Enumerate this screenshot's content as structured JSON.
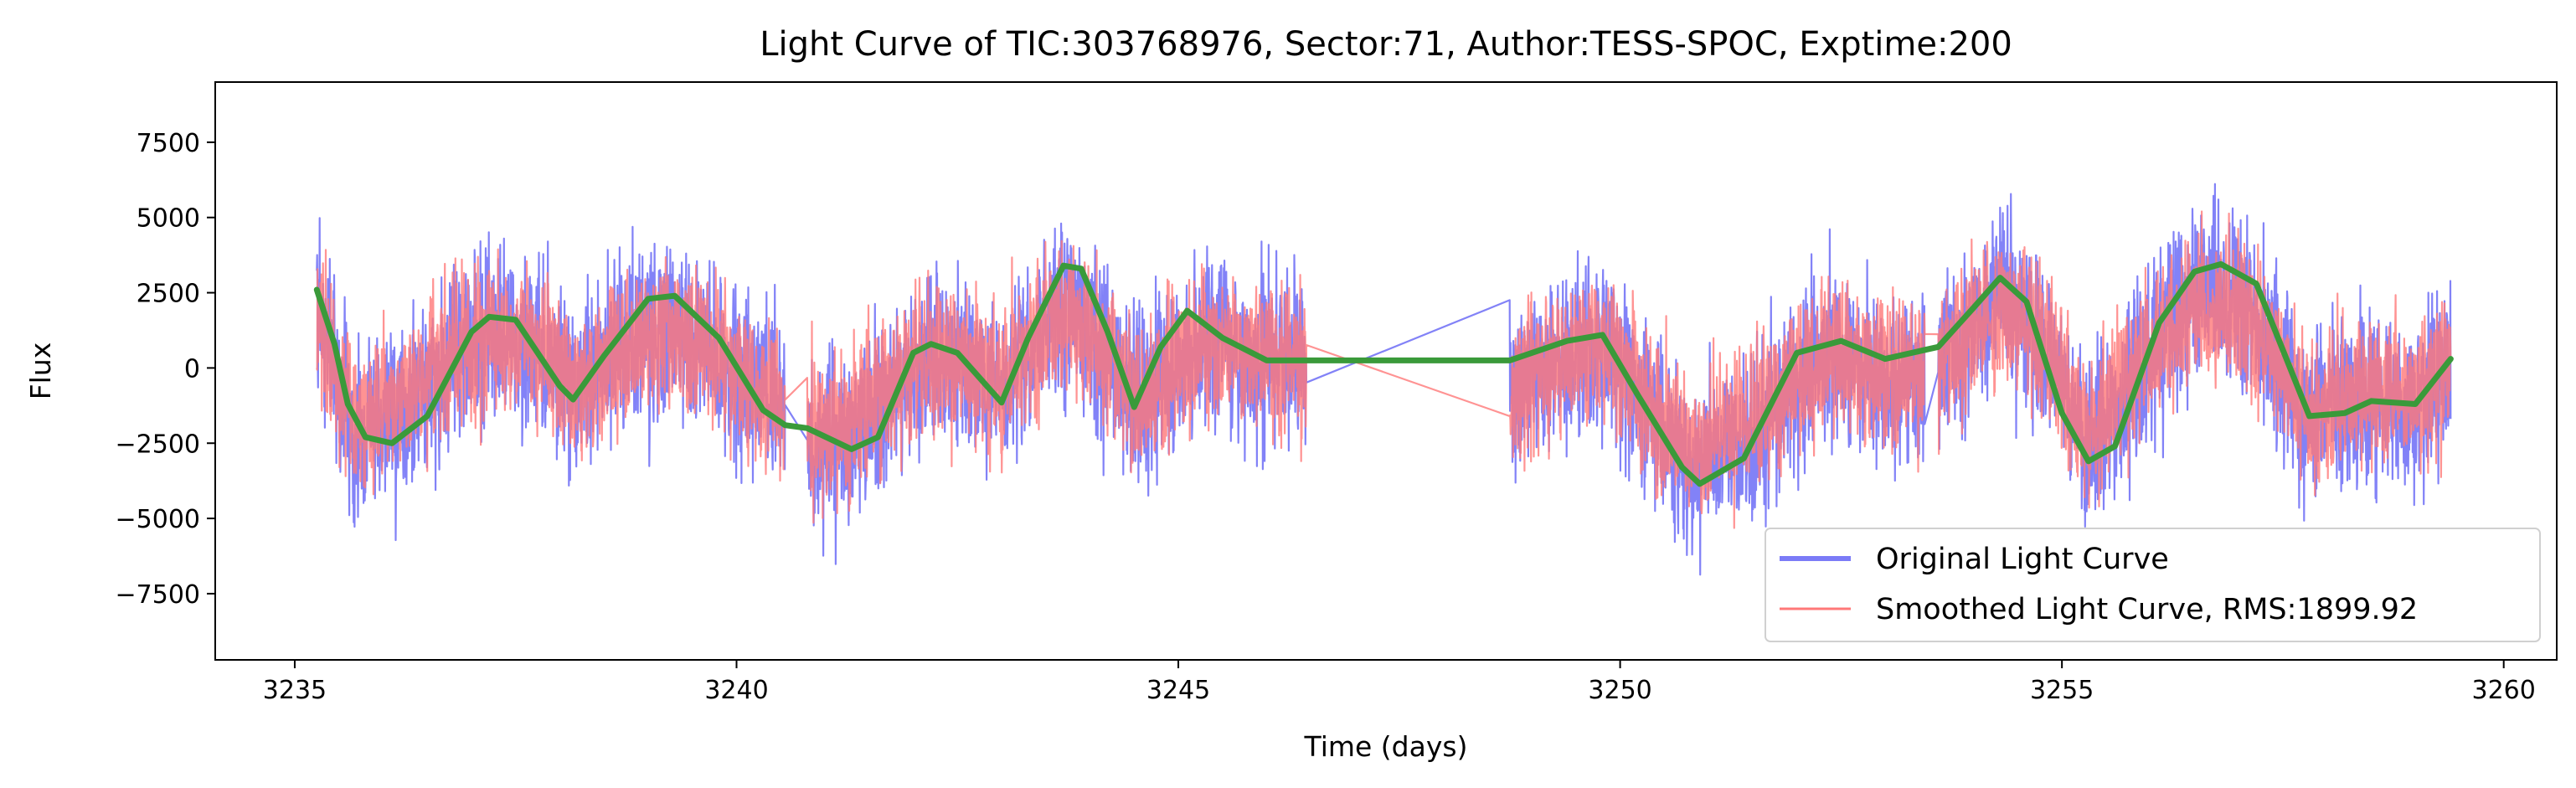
{
  "chart_data": {
    "type": "line",
    "title": "Light Curve of TIC:303768976, Sector:71, Author:TESS-SPOC, Exptime:200",
    "xlabel": "Time (days)",
    "ylabel": "Flux",
    "xlim": [
      3234.1,
      3260.6
    ],
    "ylim": [
      -9700,
      9500
    ],
    "x_ticks": [
      3235,
      3240,
      3245,
      3250,
      3255,
      3260
    ],
    "y_ticks": [
      -7500,
      -5000,
      -2500,
      0,
      2500,
      5000,
      7500
    ],
    "x_tick_labels": [
      "3235",
      "3240",
      "3245",
      "3250",
      "3255",
      "3260"
    ],
    "y_tick_labels": [
      "−7500",
      "−5000",
      "−2500",
      "0",
      "2500",
      "5000",
      "7500"
    ],
    "grid": false,
    "legend_position": "lower-right",
    "segments": [
      [
        3235.25,
        3240.55
      ],
      [
        3240.8,
        3246.45
      ],
      [
        3248.75,
        3253.45
      ],
      [
        3253.6,
        3259.4
      ]
    ],
    "series": [
      {
        "name": "Original Light Curve",
        "color": "#7b7bf7",
        "noise_amplitude": 2800,
        "trend": [
          [
            3235.25,
            2000
          ],
          [
            3235.7,
            -2300
          ],
          [
            3236.2,
            -1500
          ],
          [
            3237.0,
            900
          ],
          [
            3237.6,
            1200
          ],
          [
            3238.2,
            -600
          ],
          [
            3238.9,
            1200
          ],
          [
            3239.5,
            1000
          ],
          [
            3240.2,
            -600
          ],
          [
            3240.55,
            -1600
          ],
          [
            3240.8,
            -2600
          ],
          [
            3241.3,
            -2300
          ],
          [
            3242.0,
            0
          ],
          [
            3242.3,
            400
          ],
          [
            3243.0,
            -500
          ],
          [
            3243.5,
            1500
          ],
          [
            3243.8,
            2200
          ],
          [
            3244.3,
            -400
          ],
          [
            3244.6,
            -1200
          ],
          [
            3245.3,
            900
          ],
          [
            3245.9,
            400
          ],
          [
            3246.45,
            0
          ],
          [
            3248.75,
            -600
          ],
          [
            3249.5,
            500
          ],
          [
            3249.9,
            900
          ],
          [
            3250.3,
            -1500
          ],
          [
            3250.8,
            -3300
          ],
          [
            3251.5,
            -2200
          ],
          [
            3252.3,
            500
          ],
          [
            3253.0,
            -300
          ],
          [
            3253.45,
            -500
          ],
          [
            3253.6,
            0
          ],
          [
            3254.3,
            2500
          ],
          [
            3254.8,
            800
          ],
          [
            3255.3,
            -2600
          ],
          [
            3255.8,
            -500
          ],
          [
            3256.5,
            2600
          ],
          [
            3257.0,
            2400
          ],
          [
            3257.8,
            -1500
          ],
          [
            3258.4,
            -1000
          ],
          [
            3259.0,
            -1200
          ],
          [
            3259.4,
            0
          ]
        ]
      },
      {
        "name": "Smoothed Light Curve, RMS:1899.92",
        "color": "#ff7878",
        "noise_amplitude": 2400,
        "trend": [
          [
            3235.25,
            1500
          ],
          [
            3235.7,
            -1800
          ],
          [
            3236.2,
            -1000
          ],
          [
            3237.0,
            800
          ],
          [
            3237.6,
            1000
          ],
          [
            3238.2,
            -400
          ],
          [
            3238.9,
            1000
          ],
          [
            3239.5,
            900
          ],
          [
            3240.2,
            -400
          ],
          [
            3240.55,
            -1300
          ],
          [
            3240.8,
            -2100
          ],
          [
            3241.3,
            -1900
          ],
          [
            3242.0,
            100
          ],
          [
            3242.3,
            400
          ],
          [
            3243.0,
            -400
          ],
          [
            3243.5,
            1200
          ],
          [
            3243.8,
            1800
          ],
          [
            3244.3,
            -300
          ],
          [
            3244.6,
            -900
          ],
          [
            3245.3,
            800
          ],
          [
            3245.9,
            300
          ],
          [
            3246.45,
            0
          ],
          [
            3248.75,
            -800
          ],
          [
            3249.5,
            300
          ],
          [
            3249.9,
            700
          ],
          [
            3250.3,
            -1200
          ],
          [
            3250.8,
            -2600
          ],
          [
            3251.5,
            -1700
          ],
          [
            3252.3,
            400
          ],
          [
            3253.0,
            -200
          ],
          [
            3253.45,
            -400
          ],
          [
            3253.6,
            100
          ],
          [
            3254.3,
            2000
          ],
          [
            3254.8,
            700
          ],
          [
            3255.3,
            -2100
          ],
          [
            3255.8,
            -300
          ],
          [
            3256.5,
            2100
          ],
          [
            3257.0,
            2000
          ],
          [
            3257.8,
            -1200
          ],
          [
            3258.4,
            -800
          ],
          [
            3259.0,
            -1000
          ],
          [
            3259.4,
            0
          ]
        ]
      },
      {
        "name": "",
        "color": "#3a9a3a",
        "trend": [
          [
            3235.25,
            2600
          ],
          [
            3235.45,
            800
          ],
          [
            3235.6,
            -1200
          ],
          [
            3235.8,
            -2300
          ],
          [
            3236.1,
            -2500
          ],
          [
            3236.5,
            -1600
          ],
          [
            3237.0,
            1200
          ],
          [
            3237.2,
            1700
          ],
          [
            3237.5,
            1600
          ],
          [
            3238.0,
            -600
          ],
          [
            3238.15,
            -1050
          ],
          [
            3238.5,
            400
          ],
          [
            3239.0,
            2300
          ],
          [
            3239.3,
            2400
          ],
          [
            3239.8,
            1000
          ],
          [
            3240.3,
            -1400
          ],
          [
            3240.55,
            -1900
          ],
          [
            3240.8,
            -2000
          ],
          [
            3241.3,
            -2700
          ],
          [
            3241.6,
            -2300
          ],
          [
            3242.0,
            500
          ],
          [
            3242.2,
            800
          ],
          [
            3242.5,
            500
          ],
          [
            3243.0,
            -1150
          ],
          [
            3243.3,
            1000
          ],
          [
            3243.7,
            3400
          ],
          [
            3243.9,
            3300
          ],
          [
            3244.2,
            1200
          ],
          [
            3244.5,
            -1300
          ],
          [
            3244.8,
            700
          ],
          [
            3245.1,
            1900
          ],
          [
            3245.5,
            1000
          ],
          [
            3246.0,
            250
          ],
          [
            3246.45,
            250
          ],
          [
            3248.75,
            250
          ],
          [
            3249.0,
            500
          ],
          [
            3249.4,
            900
          ],
          [
            3249.8,
            1100
          ],
          [
            3250.2,
            -900
          ],
          [
            3250.7,
            -3300
          ],
          [
            3250.9,
            -3850
          ],
          [
            3251.4,
            -3000
          ],
          [
            3252.0,
            500
          ],
          [
            3252.5,
            900
          ],
          [
            3253.0,
            300
          ],
          [
            3253.45,
            600
          ],
          [
            3253.6,
            700
          ],
          [
            3254.0,
            2000
          ],
          [
            3254.3,
            3000
          ],
          [
            3254.6,
            2200
          ],
          [
            3255.0,
            -1500
          ],
          [
            3255.3,
            -3100
          ],
          [
            3255.6,
            -2600
          ],
          [
            3256.1,
            1500
          ],
          [
            3256.5,
            3200
          ],
          [
            3256.8,
            3450
          ],
          [
            3257.2,
            2800
          ],
          [
            3257.8,
            -1600
          ],
          [
            3258.2,
            -1500
          ],
          [
            3258.5,
            -1100
          ],
          [
            3259.0,
            -1200
          ],
          [
            3259.4,
            300
          ]
        ]
      }
    ]
  }
}
